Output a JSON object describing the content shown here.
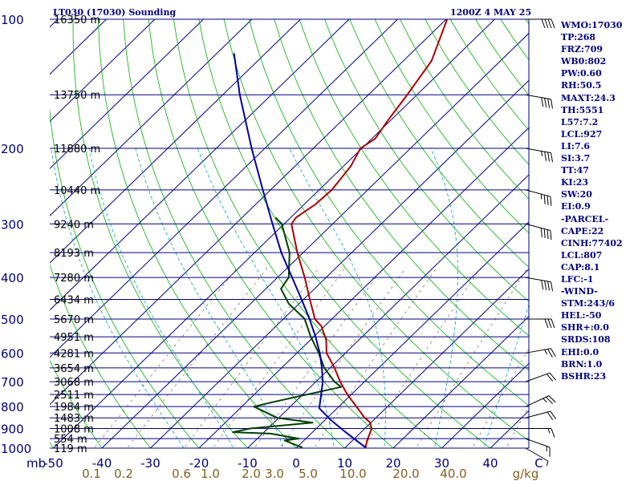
{
  "header": {
    "title": "LT030 (17030) Sounding",
    "valid_time": "1200Z  4 MAY 25"
  },
  "indices": [
    "WMO:17030",
    "TP:268",
    "FRZ:709",
    "WB0:802",
    "PW:0.60",
    "RH:50.5",
    "MAXT:24.3",
    "TH:5551",
    "L57:7.2",
    "LCL:927",
    "LI:7.6",
    "SI:3.7",
    "TT:47",
    "KI:23",
    "SW:20",
    "EI:0.9",
    "-PARCEL-",
    "CAPE:22",
    "CINH:77402",
    "LCL:807",
    "CAP:8.1",
    "LFC:-1",
    "-WIND-",
    "STM:243/6",
    "HEL:-50",
    "SHR+:0.0",
    "SRDS:108",
    "EHI:0.0",
    "BRN:1.0",
    "BSHR:23"
  ],
  "chart_data": {
    "type": "line",
    "chart_kind": "skew-T log-P sounding",
    "xlabel": "",
    "ylabel": "mb",
    "pressure_unit": "mb",
    "temperature_unit": "°C",
    "mixing_ratio_unit": "g/kg",
    "plim": [
      1000,
      100
    ],
    "tlim": [
      -50,
      50
    ],
    "pressure_ticks": [
      {
        "p": 100,
        "label": "100"
      },
      {
        "p": 200,
        "label": "200"
      },
      {
        "p": 300,
        "label": "300"
      },
      {
        "p": 400,
        "label": "400"
      },
      {
        "p": 500,
        "label": "500"
      },
      {
        "p": 600,
        "label": "600"
      },
      {
        "p": 700,
        "label": "700"
      },
      {
        "p": 800,
        "label": "800"
      },
      {
        "p": 900,
        "label": "900"
      },
      {
        "p": 1000,
        "label": "1000"
      }
    ],
    "temperature_ticks": [
      {
        "t": -50,
        "label": "-50"
      },
      {
        "t": -40,
        "label": "-40"
      },
      {
        "t": -30,
        "label": "-30"
      },
      {
        "t": -20,
        "label": "-20"
      },
      {
        "t": -10,
        "label": "-10"
      },
      {
        "t": 0,
        "label": "0"
      },
      {
        "t": 10,
        "label": "10"
      },
      {
        "t": 20,
        "label": "20"
      },
      {
        "t": 30,
        "label": "30"
      },
      {
        "t": 40,
        "label": "40"
      },
      {
        "t": 50,
        "label": "C"
      }
    ],
    "mixing_ratio_ticks": [
      {
        "w": 0.1,
        "label": "0.1"
      },
      {
        "w": 0.2,
        "label": "0.2"
      },
      {
        "w": 0.6,
        "label": "0.6"
      },
      {
        "w": 1.0,
        "label": "1.0"
      },
      {
        "w": 2.0,
        "label": "2.0"
      },
      {
        "w": 3.0,
        "label": "3.0"
      },
      {
        "w": 5.0,
        "label": "5.0"
      },
      {
        "w": 10.0,
        "label": "10.0"
      },
      {
        "w": 20.0,
        "label": "20.0"
      },
      {
        "w": 40.0,
        "label": "40.0"
      },
      {
        "w": 60.0,
        "label": "g/kg"
      }
    ],
    "height_labels": [
      {
        "p": 100,
        "label": "16350 m"
      },
      {
        "p": 150,
        "label": "13750 m"
      },
      {
        "p": 200,
        "label": "11880 m"
      },
      {
        "p": 250,
        "label": "10440 m"
      },
      {
        "p": 300,
        "label": "9240 m"
      },
      {
        "p": 350,
        "label": "8193 m"
      },
      {
        "p": 400,
        "label": "7280 m"
      },
      {
        "p": 450,
        "label": "6434 m"
      },
      {
        "p": 500,
        "label": "5670 m"
      },
      {
        "p": 550,
        "label": "4951 m"
      },
      {
        "p": 600,
        "label": "4281 m"
      },
      {
        "p": 650,
        "label": "3654 m"
      },
      {
        "p": 700,
        "label": "3068 m"
      },
      {
        "p": 750,
        "label": "2511 m"
      },
      {
        "p": 800,
        "label": "1984 m"
      },
      {
        "p": 850,
        "label": "1483 m"
      },
      {
        "p": 900,
        "label": "1008 m"
      },
      {
        "p": 950,
        "label": "554 m"
      },
      {
        "p": 1000,
        "label": "119 m"
      }
    ],
    "series": [
      {
        "role": "temperature",
        "color": "#aa0000",
        "points": [
          {
            "p": 997,
            "t": 14.2
          },
          {
            "p": 960,
            "t": 13.0
          },
          {
            "p": 925,
            "t": 12.1
          },
          {
            "p": 900,
            "t": 11.4
          },
          {
            "p": 870,
            "t": 9.7
          },
          {
            "p": 850,
            "t": 7.7
          },
          {
            "p": 800,
            "t": 3.6
          },
          {
            "p": 750,
            "t": -0.8
          },
          {
            "p": 700,
            "t": -5.0
          },
          {
            "p": 650,
            "t": -9.1
          },
          {
            "p": 600,
            "t": -13.9
          },
          {
            "p": 560,
            "t": -16.7
          },
          {
            "p": 520,
            "t": -20.6
          },
          {
            "p": 500,
            "t": -23.5
          },
          {
            "p": 450,
            "t": -28.7
          },
          {
            "p": 400,
            "t": -34.4
          },
          {
            "p": 350,
            "t": -41.2
          },
          {
            "p": 300,
            "t": -48.5
          },
          {
            "p": 290,
            "t": -48.9
          },
          {
            "p": 270,
            "t": -47.7
          },
          {
            "p": 250,
            "t": -47.4
          },
          {
            "p": 220,
            "t": -48.5
          },
          {
            "p": 200,
            "t": -50.3
          },
          {
            "p": 190,
            "t": -49.3
          },
          {
            "p": 170,
            "t": -50.7
          },
          {
            "p": 150,
            "t": -52.0
          },
          {
            "p": 125,
            "t": -54.2
          },
          {
            "p": 100,
            "t": -59.8
          }
        ]
      },
      {
        "role": "dewpoint",
        "color": "#004000",
        "points": [
          {
            "p": 997,
            "t": 1.2
          },
          {
            "p": 960,
            "t": -4.0
          },
          {
            "p": 950,
            "t": -1.5
          },
          {
            "p": 925,
            "t": -8.3
          },
          {
            "p": 918,
            "t": -16.4
          },
          {
            "p": 900,
            "t": -13.6
          },
          {
            "p": 872,
            "t": -2.0
          },
          {
            "p": 850,
            "t": -10.3
          },
          {
            "p": 800,
            "t": -17.5
          },
          {
            "p": 780,
            "t": -14.4
          },
          {
            "p": 720,
            "t": -3.7
          },
          {
            "p": 700,
            "t": -6.2
          },
          {
            "p": 650,
            "t": -11.2
          },
          {
            "p": 600,
            "t": -15.5
          },
          {
            "p": 550,
            "t": -20.6
          },
          {
            "p": 500,
            "t": -25.6
          },
          {
            "p": 460,
            "t": -32.2
          },
          {
            "p": 425,
            "t": -36.9
          },
          {
            "p": 400,
            "t": -37.7
          },
          {
            "p": 350,
            "t": -42.8
          },
          {
            "p": 300,
            "t": -50.5
          },
          {
            "p": 290,
            "t": -53.1
          }
        ]
      },
      {
        "role": "parcel",
        "color": "#0000a0",
        "points": [
          {
            "p": 997,
            "t": 14.2
          },
          {
            "p": 920,
            "t": 7.0
          },
          {
            "p": 860,
            "t": 1.2
          },
          {
            "p": 807,
            "t": -3.7
          },
          {
            "p": 750,
            "t": -6.2
          },
          {
            "p": 700,
            "t": -8.6
          },
          {
            "p": 650,
            "t": -11.7
          },
          {
            "p": 600,
            "t": -15.3
          },
          {
            "p": 550,
            "t": -19.6
          },
          {
            "p": 500,
            "t": -24.6
          },
          {
            "p": 450,
            "t": -30.4
          },
          {
            "p": 400,
            "t": -37.0
          },
          {
            "p": 350,
            "t": -44.5
          },
          {
            "p": 300,
            "t": -52.4
          },
          {
            "p": 250,
            "t": -61.6
          },
          {
            "p": 200,
            "t": -72.7
          },
          {
            "p": 150,
            "t": -86.5
          },
          {
            "p": 120,
            "t": -96.5
          }
        ]
      }
    ],
    "wind_barbs": [
      {
        "p": 1000,
        "dir": 300,
        "kt": 5
      },
      {
        "p": 950,
        "dir": 290,
        "kt": 15
      },
      {
        "p": 900,
        "dir": 270,
        "kt": 15
      },
      {
        "p": 850,
        "dir": 255,
        "kt": 20
      },
      {
        "p": 800,
        "dir": 245,
        "kt": 25
      },
      {
        "p": 700,
        "dir": 250,
        "kt": 20
      },
      {
        "p": 600,
        "dir": 260,
        "kt": 25
      },
      {
        "p": 500,
        "dir": 270,
        "kt": 30
      },
      {
        "p": 400,
        "dir": 280,
        "kt": 40
      },
      {
        "p": 300,
        "dir": 285,
        "kt": 40
      },
      {
        "p": 250,
        "dir": 285,
        "kt": 35
      },
      {
        "p": 200,
        "dir": 280,
        "kt": 35
      },
      {
        "p": 150,
        "dir": 280,
        "kt": 40
      },
      {
        "p": 100,
        "dir": 270,
        "kt": 40
      }
    ]
  }
}
